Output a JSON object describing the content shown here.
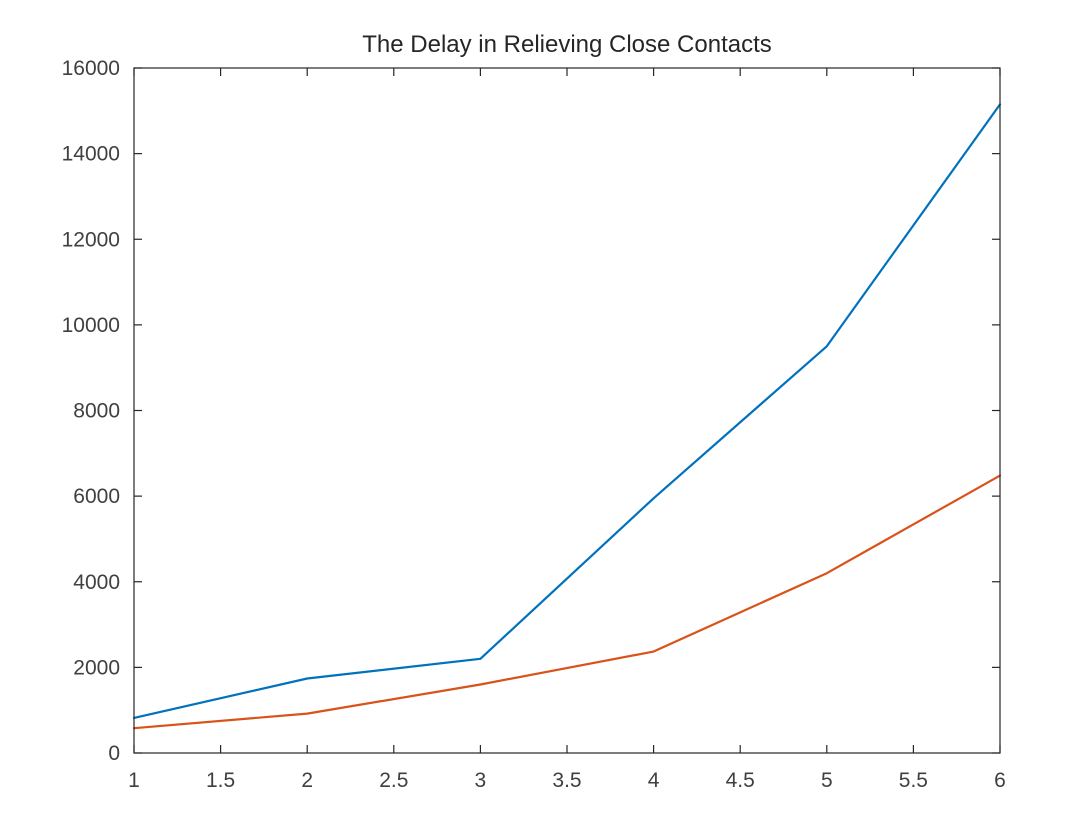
{
  "chart_data": {
    "type": "line",
    "title": "The Delay in Relieving Close Contacts",
    "xlabel": "",
    "ylabel": "",
    "xlim": [
      1,
      6
    ],
    "ylim": [
      0,
      16000
    ],
    "x_ticks": [
      "1",
      "1.5",
      "2",
      "2.5",
      "3",
      "3.5",
      "4",
      "4.5",
      "5",
      "5.5",
      "6"
    ],
    "y_ticks": [
      "0",
      "2000",
      "4000",
      "6000",
      "8000",
      "10000",
      "12000",
      "14000",
      "16000"
    ],
    "x": [
      1,
      2,
      3,
      4,
      5,
      6
    ],
    "series": [
      {
        "color": "#0072BD",
        "values": [
          820,
          1740,
          2200,
          5950,
          9500,
          15150
        ]
      },
      {
        "color": "#D95319",
        "values": [
          580,
          920,
          1600,
          2370,
          4200,
          6480
        ]
      }
    ],
    "grid": false,
    "legend": "none"
  }
}
